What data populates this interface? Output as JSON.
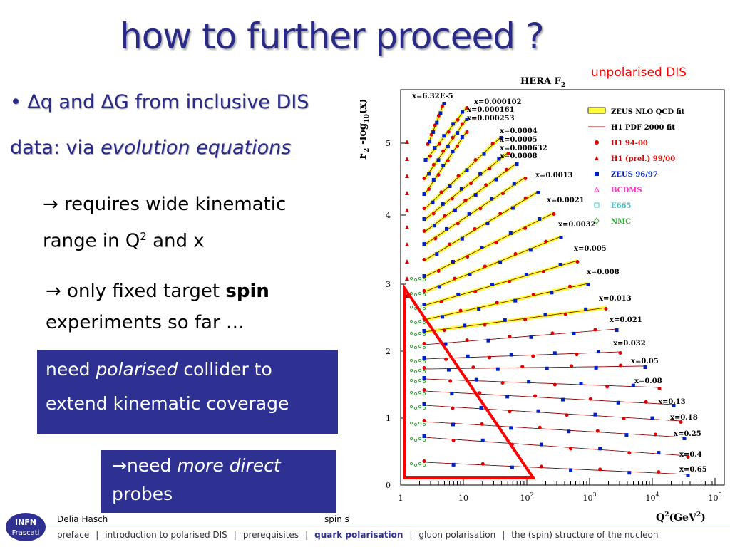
{
  "title": "how to further proceed ?",
  "bullet": {
    "glyph": "•",
    "line1": "∆q and ∆G from inclusive DIS",
    "line2_prefix": "data: via ",
    "line2_emph": "evolution equations"
  },
  "point1": {
    "arrow": "→",
    "line1": " requires wide kinematic",
    "line2_prefix": "range in Q",
    "line2_sup": "2",
    "line2_suffix": " and x"
  },
  "point2": {
    "arrow": "→",
    "line1_prefix": " only fixed target ",
    "line1_bold": "spin",
    "line2": "experiments so far …"
  },
  "box1": {
    "prefix": "need ",
    "emph": "polarised",
    "suffix": " collider to",
    "line2": "extend kinematic coverage"
  },
  "box2": {
    "arrow": "→",
    "prefix": "need ",
    "emph": "more direct",
    "line2": "probes"
  },
  "plot_label": "unpolarised DIS",
  "plot": {
    "heading": "HERA F",
    "heading_sub": "2",
    "ylabel": "F",
    "xlabel": "Q",
    "yticks": [
      "0",
      "1",
      "2",
      "3",
      "4",
      "5"
    ],
    "xticks": [
      "1",
      "10",
      "10",
      "10",
      "10",
      "10"
    ],
    "xtick_exps": [
      "",
      "",
      "2",
      "3",
      "4",
      "5"
    ],
    "legend": [
      "ZEUS NLO QCD fit",
      "H1 PDF 2000 fit",
      "H1 94-00",
      "H1 (prel.) 99/00",
      "ZEUS 96/97",
      "BCDMS",
      "E665",
      "NMC"
    ],
    "xbins": [
      "x=6.32E-5",
      "x=0.000102",
      "x=0.000161",
      "x=0.000253",
      "x=0.0004",
      "x=0.0005",
      "x=0.000632",
      "x=0.0008",
      "x=0.0013",
      "x=0.0021",
      "x=0.0032",
      "x=0.005",
      "x=0.008",
      "x=0.013",
      "x=0.021",
      "x=0.032",
      "x=0.05",
      "x=0.08",
      "x=0.13",
      "x=0.18",
      "x=0.25",
      "x=0.4",
      "x=0.65"
    ]
  },
  "logo": {
    "line1": "INFN",
    "line2": "Frascati"
  },
  "footer": {
    "author": "Delia Hasch",
    "spin_trunc": "spin s",
    "nav": [
      "preface",
      "introduction to polarised DIS",
      "prerequisites",
      "quark polarisation",
      "gluon polarisation",
      "the (spin) structure of the nucleon"
    ],
    "active_index": 3
  },
  "colors": {
    "title": "#2a2a88",
    "box": "#2e3092",
    "highlight": "#ff0000"
  }
}
